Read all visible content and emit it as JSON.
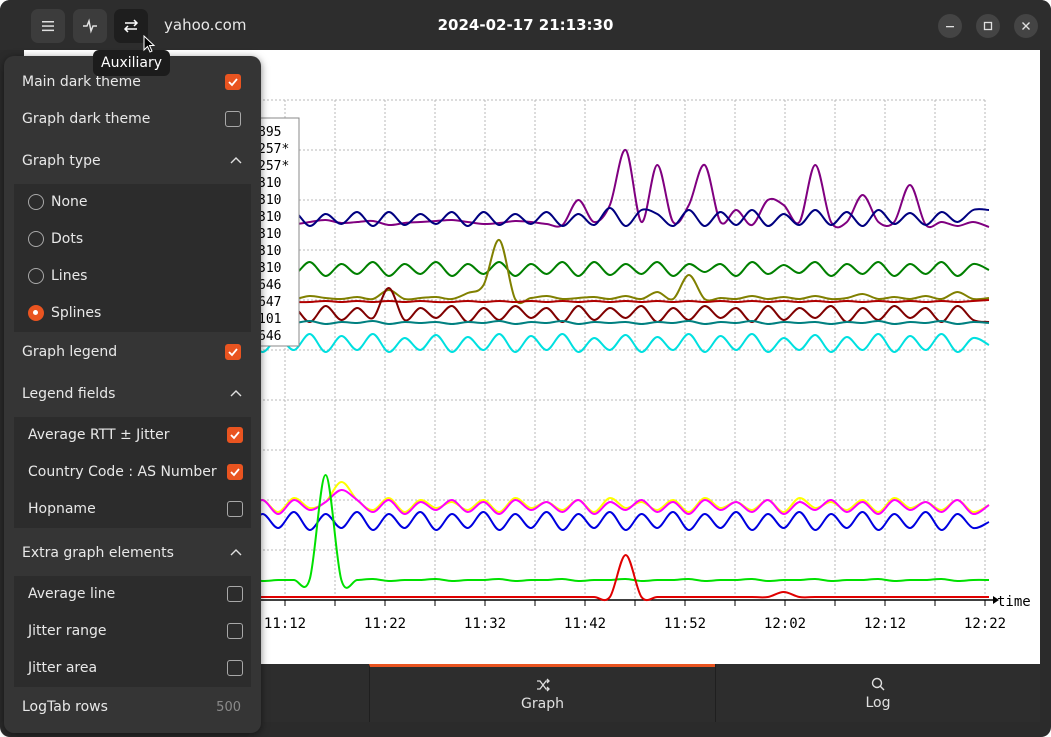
{
  "header": {
    "host": "yahoo.com",
    "datetime": "2024-02-17 21:13:30",
    "tooltip": "Auxiliary"
  },
  "tabs": [
    {
      "label": "Graph",
      "icon": "shuffle-icon",
      "active": true
    },
    {
      "label": "Log",
      "icon": "search-icon",
      "active": false
    }
  ],
  "settings": {
    "main_dark_theme": {
      "label": "Main dark theme",
      "checked": true
    },
    "graph_dark_theme": {
      "label": "Graph dark theme",
      "checked": false
    },
    "graph_type": {
      "label": "Graph type",
      "options": [
        {
          "label": "None",
          "selected": false
        },
        {
          "label": "Dots",
          "selected": false
        },
        {
          "label": "Lines",
          "selected": false
        },
        {
          "label": "Splines",
          "selected": true
        }
      ]
    },
    "graph_legend": {
      "label": "Graph legend",
      "checked": true
    },
    "legend_fields": {
      "label": "Legend fields",
      "items": [
        {
          "label": "Average RTT ± Jitter",
          "checked": true
        },
        {
          "label": "Country Code : AS Number",
          "checked": true
        },
        {
          "label": "Hopname",
          "checked": false
        }
      ]
    },
    "extra_elements": {
      "label": "Extra graph elements",
      "items": [
        {
          "label": "Average line",
          "checked": false
        },
        {
          "label": "Jitter range",
          "checked": false
        },
        {
          "label": "Jitter area",
          "checked": false
        }
      ]
    },
    "logtab_rows": {
      "label": "LogTab rows",
      "value": "500"
    }
  },
  "legend_entries": [
    "895",
    "257*",
    "257*",
    "310",
    "310",
    "310",
    "310",
    "310",
    "310",
    "646",
    "647",
    "101",
    "646"
  ],
  "chart_data": {
    "type": "line",
    "xlabel": "time",
    "x_ticks": [
      "11:12",
      "11:22",
      "11:32",
      "11:42",
      "11:52",
      "12:02",
      "12:12",
      "12:22"
    ],
    "series": [
      {
        "color": "#800080",
        "values": [
          222,
          222,
          224,
          223,
          221,
          224,
          222,
          220,
          223,
          222,
          221,
          225,
          223,
          222,
          221,
          220,
          222,
          224,
          223,
          221,
          222,
          224,
          225,
          200,
          222,
          205,
          150,
          222,
          165,
          222,
          205,
          165,
          222,
          210,
          225,
          200,
          205,
          222,
          165,
          222,
          222,
          195,
          222,
          222,
          185,
          225,
          222,
          226,
          222,
          227
        ]
      },
      {
        "color": "#000080",
        "values": [
          222,
          218,
          226,
          212,
          224,
          212,
          226,
          214,
          224,
          212,
          226,
          212,
          225,
          214,
          224,
          212,
          226,
          212,
          225,
          214,
          224,
          212,
          226,
          214,
          225,
          208,
          226,
          210,
          214,
          226,
          210,
          226,
          212,
          225,
          210,
          226,
          214,
          225,
          210,
          225,
          212,
          226,
          210,
          224,
          213,
          225,
          212,
          222,
          210,
          210
        ]
      },
      {
        "color": "#008000",
        "values": [
          265,
          270,
          262,
          276,
          264,
          274,
          262,
          276,
          264,
          274,
          262,
          276,
          264,
          274,
          262,
          276,
          264,
          274,
          262,
          276,
          264,
          274,
          262,
          276,
          262,
          275,
          264,
          274,
          262,
          276,
          264,
          272,
          264,
          276,
          262,
          274,
          265,
          273,
          262,
          276,
          264,
          274,
          262,
          276,
          264,
          274,
          262,
          276,
          264,
          270
        ]
      },
      {
        "color": "#808000",
        "values": [
          298,
          299,
          296,
          299,
          297,
          299,
          296,
          298,
          299,
          297,
          299,
          290,
          299,
          298,
          297,
          299,
          293,
          285,
          240,
          299,
          298,
          296,
          299,
          298,
          297,
          299,
          296,
          299,
          292,
          299,
          275,
          299,
          298,
          299,
          296,
          299,
          297,
          299,
          296,
          299,
          298,
          294,
          299,
          297,
          299,
          296,
          299,
          292,
          299,
          298
        ]
      },
      {
        "color": "#b00000",
        "values": [
          302,
          302,
          301,
          302,
          301,
          302,
          302,
          301,
          302,
          301,
          302,
          301,
          302,
          301,
          302,
          302,
          301,
          302,
          301,
          302,
          301,
          302,
          301,
          302,
          301,
          302,
          301,
          302,
          301,
          302,
          301,
          302,
          301,
          302,
          301,
          302,
          301,
          302,
          301,
          302,
          301,
          302,
          301,
          302,
          301,
          302,
          301,
          302,
          301,
          300
        ]
      },
      {
        "color": "#800000",
        "values": [
          312,
          310,
          320,
          308,
          318,
          308,
          322,
          306,
          320,
          308,
          318,
          288,
          320,
          308,
          318,
          306,
          322,
          308,
          320,
          306,
          318,
          308,
          322,
          306,
          320,
          308,
          318,
          306,
          322,
          308,
          320,
          306,
          318,
          308,
          322,
          306,
          320,
          308,
          318,
          306,
          322,
          308,
          320,
          306,
          318,
          308,
          322,
          306,
          320,
          322
        ]
      },
      {
        "color": "#008080",
        "values": [
          322,
          323,
          322,
          324,
          322,
          323,
          321,
          324,
          322,
          323,
          321,
          324,
          322,
          323,
          322,
          324,
          322,
          323,
          321,
          324,
          322,
          323,
          321,
          324,
          322,
          323,
          322,
          324,
          322,
          323,
          321,
          324,
          322,
          323,
          321,
          324,
          322,
          323,
          322,
          324,
          322,
          323,
          321,
          324,
          322,
          323,
          321,
          324,
          322,
          323
        ]
      },
      {
        "color": "#00e0e0",
        "values": [
          345,
          350,
          335,
          352,
          338,
          350,
          334,
          352,
          336,
          350,
          334,
          352,
          338,
          350,
          335,
          352,
          337,
          350,
          334,
          352,
          336,
          350,
          334,
          352,
          338,
          350,
          335,
          352,
          337,
          350,
          334,
          352,
          336,
          350,
          334,
          352,
          338,
          350,
          335,
          352,
          337,
          350,
          334,
          352,
          336,
          350,
          334,
          352,
          338,
          345
        ]
      },
      {
        "color": "#ffff00",
        "values": [
          508,
          502,
          510,
          500,
          512,
          498,
          508,
          502,
          482,
          500,
          510,
          498,
          512,
          500,
          508,
          502,
          510,
          500,
          512,
          498,
          508,
          502,
          510,
          500,
          512,
          498,
          508,
          502,
          510,
          500,
          512,
          498,
          508,
          502,
          510,
          500,
          512,
          498,
          508,
          502,
          510,
          500,
          512,
          498,
          508,
          502,
          510,
          500,
          512,
          505
        ]
      },
      {
        "color": "#ff00ff",
        "values": [
          510,
          502,
          512,
          500,
          514,
          500,
          510,
          502,
          490,
          500,
          512,
          500,
          514,
          502,
          510,
          500,
          512,
          502,
          514,
          500,
          510,
          502,
          512,
          500,
          514,
          502,
          510,
          500,
          512,
          502,
          514,
          500,
          510,
          502,
          512,
          500,
          514,
          502,
          510,
          500,
          512,
          502,
          514,
          500,
          510,
          502,
          512,
          500,
          514,
          505
        ]
      },
      {
        "color": "#0000e0",
        "values": [
          520,
          512,
          530,
          514,
          528,
          512,
          530,
          514,
          528,
          512,
          530,
          514,
          528,
          512,
          530,
          514,
          528,
          512,
          530,
          514,
          528,
          512,
          530,
          514,
          528,
          512,
          530,
          514,
          528,
          512,
          530,
          514,
          528,
          512,
          530,
          514,
          528,
          512,
          530,
          514,
          528,
          512,
          530,
          514,
          528,
          512,
          530,
          514,
          528,
          522
        ]
      },
      {
        "color": "#00e000",
        "values": [
          580,
          580,
          579,
          581,
          580,
          580,
          579,
          475,
          580,
          580,
          579,
          581,
          580,
          580,
          579,
          581,
          580,
          580,
          579,
          581,
          580,
          580,
          579,
          581,
          580,
          580,
          579,
          581,
          580,
          580,
          579,
          581,
          580,
          580,
          579,
          581,
          580,
          580,
          579,
          581,
          580,
          580,
          579,
          581,
          580,
          580,
          579,
          581,
          580,
          580
        ]
      },
      {
        "color": "#e00000",
        "values": [
          597,
          597,
          597,
          597,
          597,
          597,
          597,
          597,
          597,
          597,
          597,
          597,
          597,
          597,
          597,
          597,
          597,
          597,
          597,
          597,
          597,
          597,
          597,
          597,
          597,
          597,
          555,
          597,
          597,
          597,
          597,
          597,
          597,
          597,
          597,
          597,
          592,
          597,
          597,
          597,
          597,
          597,
          597,
          597,
          597,
          597,
          597,
          597,
          597,
          597
        ]
      }
    ]
  }
}
